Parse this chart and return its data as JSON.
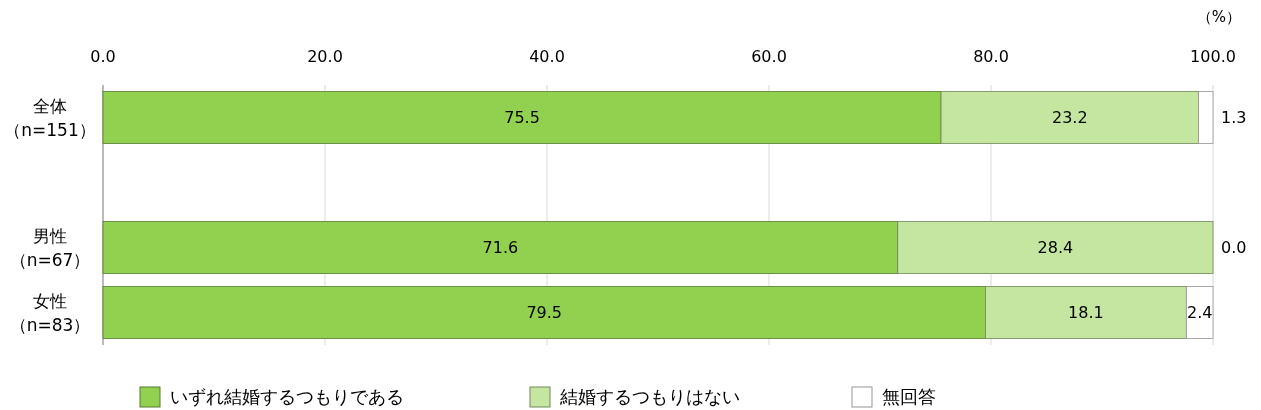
{
  "chart_data": {
    "type": "bar",
    "orientation": "horizontal",
    "stacked": true,
    "categories": [
      "全体（n=151）",
      null,
      "男性（n=67）",
      "女性（n=83）"
    ],
    "series": [
      {
        "name": "いずれ結婚するつもりである",
        "color": "#92d050",
        "values": [
          75.5,
          null,
          71.6,
          79.5
        ],
        "value_labels": [
          "75.5",
          null,
          "71.6",
          "79.5"
        ]
      },
      {
        "name": "結婚するつもりはない",
        "color": "#c4e6a0",
        "values": [
          23.2,
          null,
          28.4,
          18.1
        ],
        "value_labels": [
          "23.2",
          null,
          "28.4",
          "18.1"
        ]
      },
      {
        "name": "無回答",
        "color": "#ffffff",
        "values": [
          1.3,
          null,
          0.0,
          2.4
        ],
        "value_labels": [
          "1.3",
          null,
          "0.0",
          "2.4"
        ]
      }
    ],
    "xlim": [
      0,
      100
    ],
    "xticks": [
      {
        "value": 0,
        "label": "0.0"
      },
      {
        "value": 20,
        "label": "20.0"
      },
      {
        "value": 40,
        "label": "40.0"
      },
      {
        "value": 60,
        "label": "60.0"
      },
      {
        "value": 80,
        "label": "80.0"
      },
      {
        "value": 100,
        "label": "100.0"
      }
    ],
    "grid": "x",
    "legend": "bottom",
    "annotations": [
      "（%）"
    ]
  }
}
